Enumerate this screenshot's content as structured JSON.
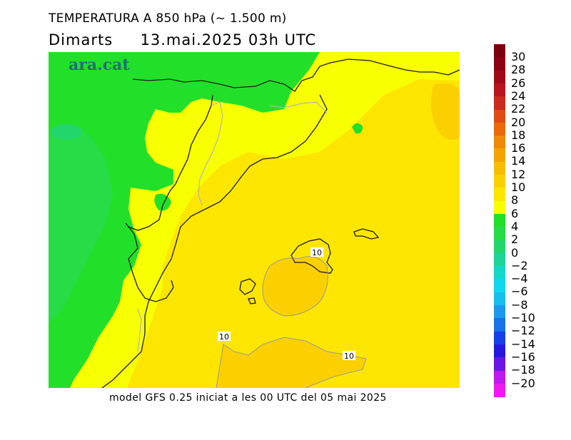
{
  "header": {
    "title": "TEMPERATURA A 850 hPa (~ 1.500 m)",
    "subtitle_day": "Dimarts",
    "subtitle_time": "13.mai.2025 03h UTC"
  },
  "logo_text": "ara.cat",
  "footer": "model GFS 0.25 iniciat a les 00 UTC del 05 mai 2025",
  "contour_labels": [
    "10",
    "10",
    "10"
  ],
  "legend": {
    "levels": [
      {
        "label": "30",
        "color": "#7a0010"
      },
      {
        "label": "28",
        "color": "#8c0014"
      },
      {
        "label": "26",
        "color": "#a00a18"
      },
      {
        "label": "24",
        "color": "#b8141e"
      },
      {
        "label": "22",
        "color": "#cc2a1e"
      },
      {
        "label": "20",
        "color": "#e04a14"
      },
      {
        "label": "18",
        "color": "#ea6a0c"
      },
      {
        "label": "16",
        "color": "#f08a06"
      },
      {
        "label": "14",
        "color": "#f5a300"
      },
      {
        "label": "12",
        "color": "#f8bc00"
      },
      {
        "label": "10",
        "color": "#fad000"
      },
      {
        "label": "8",
        "color": "#fce600"
      },
      {
        "label": "6",
        "color": "#f8ff00"
      },
      {
        "label": "4",
        "color": "#22e02a"
      },
      {
        "label": "2",
        "color": "#28dc48"
      },
      {
        "label": "0",
        "color": "#22d66c"
      },
      {
        "label": "−2",
        "color": "#1cd49a"
      },
      {
        "label": "−4",
        "color": "#14d8c6"
      },
      {
        "label": "−6",
        "color": "#10d6ee"
      },
      {
        "label": "−8",
        "color": "#18bef0"
      },
      {
        "label": "−10",
        "color": "#1c98ec"
      },
      {
        "label": "−12",
        "color": "#1870ea"
      },
      {
        "label": "−14",
        "color": "#1640e8"
      },
      {
        "label": "−16",
        "color": "#2418e0"
      },
      {
        "label": "−18",
        "color": "#6818e4"
      },
      {
        "label": "−20",
        "color": "#c018f0"
      },
      {
        "label": "",
        "color": "#f018f0"
      }
    ]
  }
}
